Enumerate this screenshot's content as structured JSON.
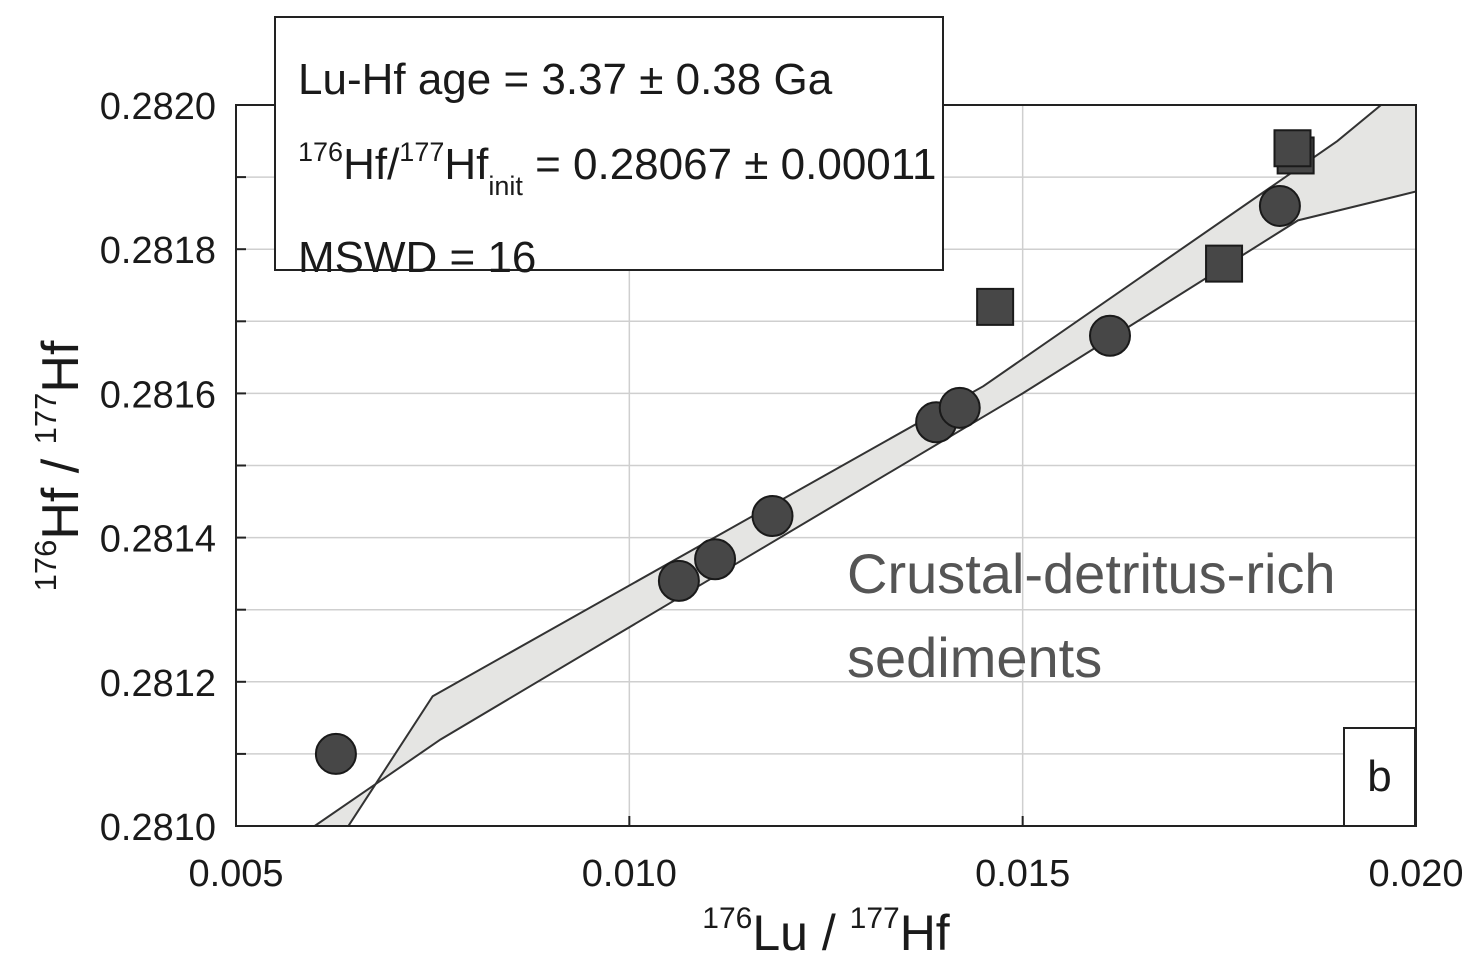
{
  "chart_data": {
    "type": "scatter",
    "xlim": [
      0.005,
      0.02
    ],
    "ylim": [
      0.281,
      0.282
    ],
    "x_ticks": [
      "0.005",
      "0.010",
      "0.015",
      "0.020"
    ],
    "y_ticks": [
      "0.2810",
      "0.2812",
      "0.2814",
      "0.2816",
      "0.2818",
      "0.2820"
    ],
    "grid": true,
    "xlabel": {
      "sup1": "176",
      "a": "Lu / ",
      "sup2": "177",
      "b": "Hf"
    },
    "ylabel": {
      "sup1": "176",
      "a": "Hf / ",
      "sup2": "177",
      "b": "Hf"
    },
    "series": [
      {
        "marker": "circle",
        "points": [
          {
            "x": 0.00627,
            "y": 0.2811
          },
          {
            "x": 0.01063,
            "y": 0.28134
          },
          {
            "x": 0.01109,
            "y": 0.28137
          },
          {
            "x": 0.01182,
            "y": 0.28143
          },
          {
            "x": 0.0139,
            "y": 0.28156
          },
          {
            "x": 0.0142,
            "y": 0.28158
          },
          {
            "x": 0.01611,
            "y": 0.28168
          },
          {
            "x": 0.01827,
            "y": 0.28186
          }
        ]
      },
      {
        "marker": "square",
        "points": [
          {
            "x": 0.01465,
            "y": 0.28172
          },
          {
            "x": 0.01756,
            "y": 0.28178
          },
          {
            "x": 0.01847,
            "y": 0.28193
          },
          {
            "x": 0.01843,
            "y": 0.28194
          }
        ]
      }
    ],
    "isochron": {
      "center": [
        [
          0.005,
          0.28067
        ],
        [
          0.02,
          0.28196
        ]
      ],
      "upper": [
        [
          0.005,
          0.28076
        ],
        [
          0.0075,
          0.28118
        ],
        [
          0.0145,
          0.28161
        ],
        [
          0.019,
          0.28195
        ],
        [
          0.02,
          0.28204
        ]
      ],
      "lower": [
        [
          0.006,
          0.281
        ],
        [
          0.0076,
          0.28112
        ],
        [
          0.015,
          0.2816
        ],
        [
          0.0185,
          0.28184
        ],
        [
          0.02,
          0.28188
        ]
      ]
    },
    "stats": {
      "line1": "Lu-Hf age = 3.37 ± 0.38 Ga",
      "line2_sup1": "176",
      "line2_a": "Hf/",
      "line2_sup2": "177",
      "line2_b": "Hf",
      "line2_sub": "init",
      "line2_c": " = 0.28067 ± 0.00011",
      "line3": "MSWD = 16"
    },
    "annotation": [
      "Crustal-detritus-rich",
      "sediments"
    ],
    "panel_label": "b",
    "colors": {
      "marker": "#474747",
      "band": "#e5e5e3",
      "grid": "#cfcfcf"
    }
  }
}
